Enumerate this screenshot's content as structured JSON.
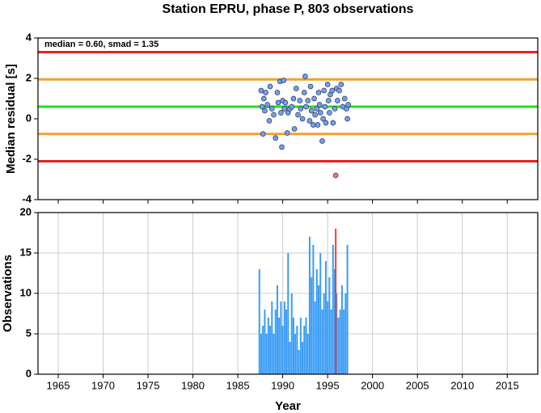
{
  "chart_data": [
    {
      "type": "scatter",
      "title": "Station EPRU, phase P, 803 observations",
      "y_label": "Median residual [s]",
      "annotation": "median = 0.60, smad = 1.35",
      "xlim": [
        1962.75,
        2018.4
      ],
      "xticks": [
        1965,
        1970,
        1975,
        1980,
        1985,
        1990,
        1995,
        2000,
        2005,
        2010,
        2015
      ],
      "ylim": [
        -4,
        4
      ],
      "yticks": [
        -4,
        -2,
        0,
        2,
        4
      ],
      "grid": false,
      "hlines": [
        {
          "value": 3.3,
          "color": "#e8201c"
        },
        {
          "value": 1.95,
          "color": "#f0a030"
        },
        {
          "value": 0.6,
          "color": "#20e020"
        },
        {
          "value": -0.75,
          "color": "#f0a030"
        },
        {
          "value": -2.1,
          "color": "#e8201c"
        }
      ],
      "series": [
        {
          "color": "#6ea0f0",
          "x": [
            1987.6,
            1987.7,
            1987.8,
            1987.9,
            1988.0,
            1988.1,
            1988.3,
            1988.5,
            1988.6,
            1988.8,
            1989.0,
            1989.2,
            1989.4,
            1989.5,
            1989.7,
            1989.8,
            1989.9,
            1990.0,
            1990.1,
            1990.2,
            1990.3,
            1990.5,
            1990.6,
            1990.8,
            1991.0,
            1991.2,
            1991.3,
            1991.5,
            1991.7,
            1991.9,
            1992.0,
            1992.2,
            1992.4,
            1992.5,
            1992.6,
            1992.8,
            1993.0,
            1993.1,
            1993.2,
            1993.4,
            1993.5,
            1993.6,
            1993.8,
            1993.9,
            1994.0,
            1994.1,
            1994.2,
            1994.4,
            1994.5,
            1994.6,
            1994.7,
            1994.8,
            1995.0,
            1995.1,
            1995.2,
            1995.3,
            1995.5,
            1995.6,
            1995.8,
            1996.0,
            1996.1,
            1996.3,
            1996.5,
            1996.7,
            1996.9,
            1997.1,
            1997.2,
            1997.3
          ],
          "values": [
            1.4,
            0.6,
            -0.75,
            1.0,
            0.4,
            1.3,
            0.7,
            -0.1,
            1.6,
            0.5,
            0.2,
            -0.95,
            1.3,
            0.8,
            1.85,
            0.3,
            -1.4,
            0.9,
            1.9,
            0.5,
            0.8,
            -0.7,
            0.3,
            0.5,
            0.6,
            1.0,
            -0.5,
            1.5,
            0.2,
            0.9,
            0.5,
            0.0,
            1.3,
            2.1,
            0.6,
            0.9,
            -0.1,
            1.6,
            0.4,
            -0.3,
            1.0,
            0.2,
            0.5,
            -0.3,
            1.3,
            0.7,
            0.3,
            -1.1,
            0.0,
            1.4,
            0.6,
            -0.2,
            1.7,
            0.9,
            0.3,
            1.2,
            1.4,
            -0.2,
            0.5,
            1.5,
            0.9,
            1.4,
            1.7,
            0.6,
            1.0,
            0.5,
            0.0,
            0.7
          ]
        },
        {
          "color": "#f07a6a",
          "x": [
            1995.9
          ],
          "values": [
            -2.8
          ]
        }
      ]
    },
    {
      "type": "bar",
      "x_label": "Year",
      "y_label": "Observations",
      "xlim": [
        1962.75,
        2018.4
      ],
      "xticks": [
        1965,
        1970,
        1975,
        1980,
        1985,
        1990,
        1995,
        2000,
        2005,
        2010,
        2015
      ],
      "ylim": [
        0,
        20
      ],
      "yticks": [
        0,
        5,
        10,
        15,
        20
      ],
      "grid": true,
      "series": [
        {
          "color": "#3a9cf5",
          "x": [
            1987.4,
            1987.6,
            1987.8,
            1988.0,
            1988.2,
            1988.4,
            1988.6,
            1988.8,
            1989.0,
            1989.2,
            1989.4,
            1989.6,
            1989.8,
            1990.0,
            1990.2,
            1990.4,
            1990.6,
            1990.8,
            1991.0,
            1991.2,
            1991.4,
            1991.6,
            1991.8,
            1992.0,
            1992.2,
            1992.4,
            1992.6,
            1992.8,
            1993.0,
            1993.2,
            1993.4,
            1993.6,
            1993.8,
            1994.0,
            1994.2,
            1994.4,
            1994.6,
            1994.8,
            1995.0,
            1995.2,
            1995.4,
            1995.6,
            1995.8,
            1996.0,
            1996.2,
            1996.4,
            1996.6,
            1996.8,
            1997.0,
            1997.2
          ],
          "values": [
            13,
            5,
            6,
            8,
            5,
            7,
            6,
            9,
            5,
            8,
            11,
            7,
            9,
            6,
            9,
            8,
            15,
            4,
            10,
            7,
            5,
            6,
            3,
            7,
            4,
            6,
            7,
            5,
            17,
            12,
            16,
            9,
            13,
            11,
            15,
            8,
            10,
            14,
            9,
            12,
            8,
            16,
            13,
            10,
            7,
            8,
            11,
            8,
            10,
            16
          ]
        },
        {
          "color": "#e8403a",
          "x": [
            1995.9
          ],
          "values": [
            18
          ]
        }
      ]
    }
  ]
}
